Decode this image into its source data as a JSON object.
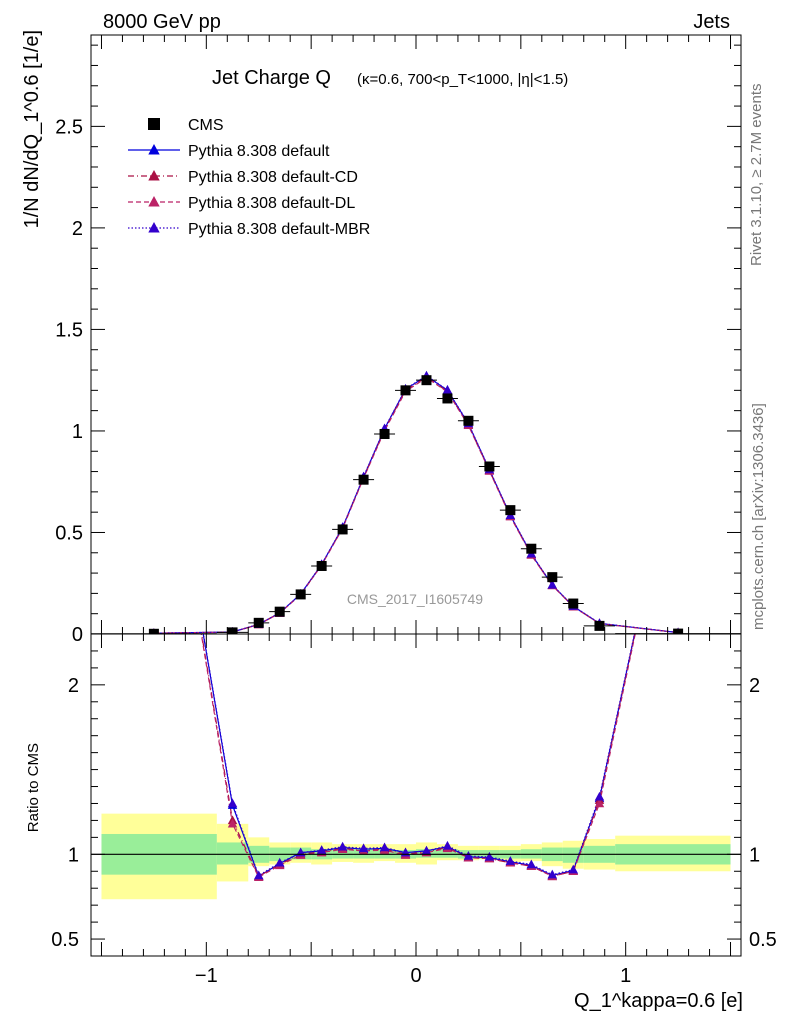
{
  "header": {
    "left": "8000 GeV pp",
    "right": "Jets"
  },
  "side_labels": {
    "rivet": "Rivet 3.1.10, ≥ 2.7M events",
    "mcplots": "mcplots.cern.ch [arXiv:1306.3436]"
  },
  "watermark": "CMS_2017_I1605749",
  "chart_data": [
    {
      "type": "line",
      "title": "Jet Charge Q",
      "subtitle": "(κ=0.6, 700<p_T<1000, |η|<1.5)",
      "ylabel": "1/N dN/dQ_1^0.6 [1/e]",
      "xlim": [
        -1.55,
        1.55
      ],
      "ylim": [
        0,
        2.95
      ],
      "y_ticks": [
        0,
        0.5,
        1,
        1.5,
        2,
        2.5
      ],
      "y_tick_labels": [
        "0",
        "0.5",
        "1",
        "1.5",
        "2",
        "2.5"
      ],
      "legend": {
        "placement": "top-left",
        "entries": [
          "CMS",
          "Pythia 8.308 default",
          "Pythia 8.308 default-CD",
          "Pythia 8.308 default-DL",
          "Pythia 8.308 default-MBR"
        ]
      },
      "data": {
        "name": "CMS",
        "color": "#000000",
        "bins": [
          [
            -1.55,
            -0.95
          ],
          [
            -0.95,
            -0.8
          ],
          [
            -0.8,
            -0.7
          ],
          [
            -0.7,
            -0.6
          ],
          [
            -0.6,
            -0.5
          ],
          [
            -0.5,
            -0.4
          ],
          [
            -0.4,
            -0.3
          ],
          [
            -0.3,
            -0.2
          ],
          [
            -0.2,
            -0.1
          ],
          [
            -0.1,
            0.0
          ],
          [
            0.0,
            0.1
          ],
          [
            0.1,
            0.2
          ],
          [
            0.2,
            0.3
          ],
          [
            0.3,
            0.4
          ],
          [
            0.4,
            0.5
          ],
          [
            0.5,
            0.6
          ],
          [
            0.6,
            0.7
          ],
          [
            0.7,
            0.8
          ],
          [
            0.8,
            0.95
          ],
          [
            0.95,
            1.55
          ]
        ],
        "x": [
          -1.25,
          -0.875,
          -0.75,
          -0.65,
          -0.55,
          -0.45,
          -0.35,
          -0.25,
          -0.15,
          -0.05,
          0.05,
          0.15,
          0.25,
          0.35,
          0.45,
          0.55,
          0.65,
          0.75,
          0.875,
          1.25
        ],
        "y": [
          0.001,
          0.008,
          0.055,
          0.11,
          0.195,
          0.335,
          0.515,
          0.76,
          0.985,
          1.2,
          1.25,
          1.16,
          1.05,
          0.825,
          0.61,
          0.42,
          0.28,
          0.15,
          0.04,
          0.002
        ]
      },
      "series": [
        {
          "name": "Pythia 8.308 default",
          "color": "#0000dd",
          "dash": "solid",
          "x": [
            -1.25,
            -0.875,
            -0.75,
            -0.65,
            -0.55,
            -0.45,
            -0.35,
            -0.25,
            -0.15,
            -0.05,
            0.05,
            0.15,
            0.25,
            0.35,
            0.45,
            0.55,
            0.65,
            0.75,
            0.875,
            1.25
          ],
          "y": [
            0.004,
            0.01,
            0.048,
            0.104,
            0.197,
            0.342,
            0.525,
            0.773,
            1.01,
            1.205,
            1.27,
            1.2,
            1.035,
            0.808,
            0.583,
            0.393,
            0.241,
            0.136,
            0.052,
            0.007
          ]
        },
        {
          "name": "Pythia 8.308 default-CD",
          "color": "#aa1144",
          "dash": "6,3,1,3",
          "x": [
            -1.25,
            -0.875,
            -0.75,
            -0.65,
            -0.55,
            -0.45,
            -0.35,
            -0.25,
            -0.15,
            -0.05,
            0.05,
            0.15,
            0.25,
            0.35,
            0.45,
            0.55,
            0.65,
            0.75,
            0.875,
            1.25
          ],
          "y": [
            0.004,
            0.0095,
            0.047,
            0.103,
            0.195,
            0.34,
            0.522,
            0.77,
            1.005,
            1.2,
            1.265,
            1.195,
            1.03,
            0.805,
            0.58,
            0.39,
            0.24,
            0.135,
            0.051,
            0.007
          ]
        },
        {
          "name": "Pythia 8.308 default-DL",
          "color": "#bb2266",
          "dash": "5,3",
          "x": [
            -1.25,
            -0.875,
            -0.75,
            -0.65,
            -0.55,
            -0.45,
            -0.35,
            -0.25,
            -0.15,
            -0.05,
            0.05,
            0.15,
            0.25,
            0.35,
            0.45,
            0.55,
            0.65,
            0.75,
            0.875,
            1.25
          ],
          "y": [
            0.004,
            0.0095,
            0.047,
            0.103,
            0.194,
            0.339,
            0.52,
            0.768,
            1.0,
            1.195,
            1.262,
            1.192,
            1.028,
            0.803,
            0.578,
            0.389,
            0.239,
            0.134,
            0.051,
            0.007
          ]
        },
        {
          "name": "Pythia 8.308 default-MBR",
          "color": "#3300cc",
          "dash": "1.5,2",
          "x": [
            -1.25,
            -0.875,
            -0.75,
            -0.65,
            -0.55,
            -0.45,
            -0.35,
            -0.25,
            -0.15,
            -0.05,
            0.05,
            0.15,
            0.25,
            0.35,
            0.45,
            0.55,
            0.65,
            0.75,
            0.875,
            1.25
          ],
          "y": [
            0.004,
            0.01,
            0.048,
            0.104,
            0.197,
            0.343,
            0.526,
            0.775,
            1.012,
            1.207,
            1.272,
            1.202,
            1.037,
            0.81,
            0.585,
            0.395,
            0.242,
            0.137,
            0.053,
            0.007
          ]
        }
      ]
    },
    {
      "type": "line",
      "ylabel": "Ratio to CMS",
      "xlabel": "Q_1^kappa=0.6 [e]",
      "xlim": [
        -1.55,
        1.55
      ],
      "ylim": [
        0.4,
        2.3
      ],
      "x_ticks": [
        -1,
        0,
        1
      ],
      "x_tick_labels": [
        "−1",
        "0",
        "1"
      ],
      "y_ticks": [
        0.5,
        1,
        2
      ],
      "y_tick_labels": [
        "0.5",
        "1",
        "2"
      ],
      "bands": {
        "bins": [
          [
            -1.5,
            -0.95
          ],
          [
            -0.95,
            -0.8
          ],
          [
            -0.8,
            -0.7
          ],
          [
            -0.7,
            -0.6
          ],
          [
            -0.6,
            -0.5
          ],
          [
            -0.5,
            -0.4
          ],
          [
            -0.4,
            -0.3
          ],
          [
            -0.3,
            -0.2
          ],
          [
            -0.2,
            -0.1
          ],
          [
            -0.1,
            0.0
          ],
          [
            0.0,
            0.1
          ],
          [
            0.1,
            0.2
          ],
          [
            0.2,
            0.3
          ],
          [
            0.3,
            0.4
          ],
          [
            0.4,
            0.5
          ],
          [
            0.5,
            0.6
          ],
          [
            0.6,
            0.7
          ],
          [
            0.7,
            0.8
          ],
          [
            0.8,
            0.95
          ],
          [
            0.95,
            1.5
          ]
        ],
        "stat_lo": [
          0.88,
          0.94,
          0.95,
          0.96,
          0.97,
          0.97,
          0.975,
          0.975,
          0.975,
          0.975,
          0.98,
          0.98,
          0.975,
          0.975,
          0.975,
          0.975,
          0.96,
          0.95,
          0.95,
          0.94
        ],
        "stat_hi": [
          1.12,
          1.07,
          1.05,
          1.04,
          1.04,
          1.03,
          1.03,
          1.03,
          1.03,
          1.025,
          1.03,
          1.03,
          1.025,
          1.025,
          1.025,
          1.03,
          1.04,
          1.04,
          1.05,
          1.06
        ],
        "tot_lo": [
          0.735,
          0.84,
          0.93,
          0.94,
          0.95,
          0.94,
          0.955,
          0.95,
          0.96,
          0.95,
          0.94,
          0.965,
          0.965,
          0.97,
          0.955,
          0.96,
          0.93,
          0.915,
          0.91,
          0.9
        ],
        "tot_hi": [
          1.24,
          1.18,
          1.1,
          1.07,
          1.07,
          1.07,
          1.06,
          1.06,
          1.06,
          1.06,
          1.07,
          1.06,
          1.05,
          1.05,
          1.05,
          1.06,
          1.07,
          1.08,
          1.09,
          1.11
        ],
        "stat_color": "#99ee99",
        "total_color": "#ffff99"
      },
      "series": [
        {
          "name": "Pythia 8.308 default",
          "color": "#0000dd",
          "dash": "solid",
          "x": [
            -1.25,
            -0.875,
            -0.75,
            -0.65,
            -0.55,
            -0.45,
            -0.35,
            -0.25,
            -0.15,
            -0.05,
            0.05,
            0.15,
            0.25,
            0.35,
            0.45,
            0.55,
            0.65,
            0.75,
            0.875,
            1.25
          ],
          "y": [
            4.0,
            1.29,
            0.87,
            0.945,
            1.01,
            1.02,
            1.04,
            1.03,
            1.035,
            1.01,
            1.02,
            1.045,
            0.985,
            0.98,
            0.955,
            0.935,
            0.875,
            0.905,
            1.33,
            3.5
          ]
        },
        {
          "name": "Pythia 8.308 default-CD",
          "color": "#aa1144",
          "dash": "6,3,1,3",
          "x": [
            -1.25,
            -0.875,
            -0.75,
            -0.65,
            -0.55,
            -0.45,
            -0.35,
            -0.25,
            -0.15,
            -0.05,
            0.05,
            0.15,
            0.25,
            0.35,
            0.45,
            0.55,
            0.65,
            0.75,
            0.875,
            1.25
          ],
          "y": [
            4.0,
            1.2,
            0.87,
            0.94,
            1.0,
            1.015,
            1.035,
            1.02,
            1.03,
            1.0,
            1.015,
            1.04,
            0.98,
            0.975,
            0.95,
            0.93,
            0.87,
            0.9,
            1.32,
            3.5
          ]
        },
        {
          "name": "Pythia 8.308 default-DL",
          "color": "#bb2266",
          "dash": "5,3",
          "x": [
            -1.25,
            -0.875,
            -0.75,
            -0.65,
            -0.55,
            -0.45,
            -0.35,
            -0.25,
            -0.15,
            -0.05,
            0.05,
            0.15,
            0.25,
            0.35,
            0.45,
            0.55,
            0.65,
            0.75,
            0.875,
            1.25
          ],
          "y": [
            4.0,
            1.18,
            0.865,
            0.935,
            0.995,
            1.01,
            1.03,
            1.02,
            1.025,
            0.995,
            1.01,
            1.035,
            0.98,
            0.975,
            0.95,
            0.93,
            0.87,
            0.9,
            1.3,
            3.5
          ]
        },
        {
          "name": "Pythia 8.308 default-MBR",
          "color": "#3300cc",
          "dash": "1.5,2",
          "x": [
            -1.25,
            -0.875,
            -0.75,
            -0.65,
            -0.55,
            -0.45,
            -0.35,
            -0.25,
            -0.15,
            -0.05,
            0.05,
            0.15,
            0.25,
            0.35,
            0.45,
            0.55,
            0.65,
            0.75,
            0.875,
            1.25
          ],
          "y": [
            4.0,
            1.3,
            0.875,
            0.95,
            1.01,
            1.025,
            1.045,
            1.035,
            1.04,
            1.01,
            1.02,
            1.05,
            0.99,
            0.985,
            0.96,
            0.94,
            0.88,
            0.91,
            1.34,
            3.5
          ]
        }
      ]
    }
  ]
}
